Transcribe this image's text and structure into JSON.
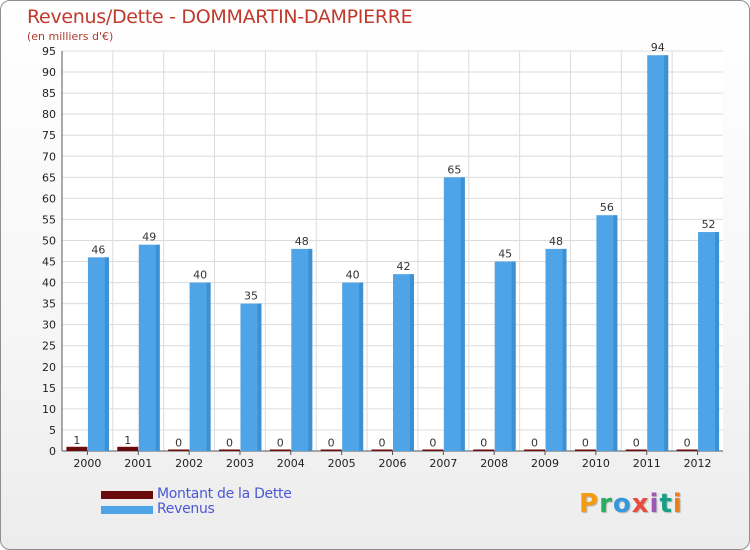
{
  "chart_data": {
    "type": "bar",
    "title": "Revenus/Dette - DOMMARTIN-DAMPIERRE",
    "subtitle": "(en milliers d'€)",
    "categories": [
      "2000",
      "2001",
      "2002",
      "2003",
      "2004",
      "2005",
      "2006",
      "2007",
      "2008",
      "2009",
      "2010",
      "2011",
      "2012"
    ],
    "series": [
      {
        "name": "Montant de la Dette",
        "color": "#6b0b0b",
        "values": [
          1,
          1,
          0,
          0,
          0,
          0,
          0,
          0,
          0,
          0,
          0,
          0,
          0
        ]
      },
      {
        "name": "Revenus",
        "color": "#4ea4e6",
        "values": [
          46,
          49,
          40,
          35,
          48,
          40,
          42,
          65,
          45,
          48,
          56,
          94,
          52
        ]
      }
    ],
    "ylim": [
      0,
      95
    ],
    "yticks": [
      0,
      5,
      10,
      15,
      20,
      25,
      30,
      35,
      40,
      45,
      50,
      55,
      60,
      65,
      70,
      75,
      80,
      85,
      90,
      95
    ],
    "xlabel": "",
    "ylabel": "",
    "grid": true,
    "legend_position": "bottom-left"
  },
  "branding": {
    "logo_text": "Proxiti",
    "logo_letters": [
      {
        "char": "P",
        "color": "#f39c12"
      },
      {
        "char": "r",
        "color": "#27ae60"
      },
      {
        "char": "o",
        "color": "#3498db"
      },
      {
        "char": "x",
        "color": "#e74c3c"
      },
      {
        "char": "i",
        "color": "#9b59b6"
      },
      {
        "char": "t",
        "color": "#16a085"
      },
      {
        "char": "i",
        "color": "#e67e22"
      }
    ]
  }
}
